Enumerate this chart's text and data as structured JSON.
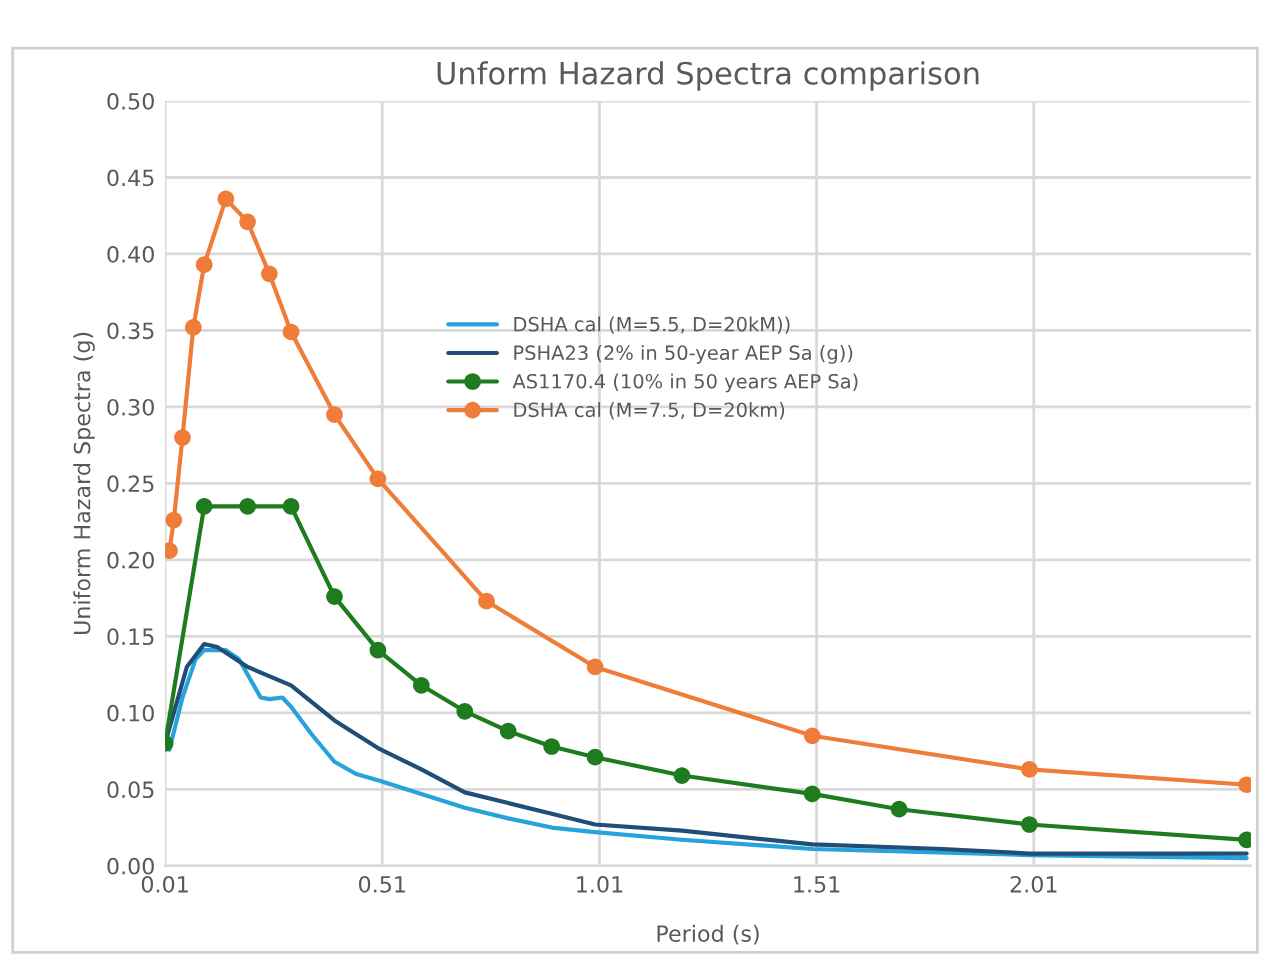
{
  "chart_data": {
    "type": "line",
    "title": "Unform Hazard Spectra comparison",
    "xlabel": "Period (s)",
    "ylabel": "Uniform Hazard Spectra (g)",
    "xlim": [
      0.01,
      2.51
    ],
    "xticks": [
      0.01,
      0.51,
      1.01,
      1.51,
      2.01
    ],
    "ylim": [
      0,
      0.5
    ],
    "yticks": [
      {
        "value": 0,
        "label": "0.00"
      },
      {
        "value": 0.05,
        "label": "0.05"
      },
      {
        "value": 0.1,
        "label": "0.10"
      },
      {
        "value": 0.15,
        "label": "0.15"
      },
      {
        "value": 0.2,
        "label": "0.20"
      },
      {
        "value": 0.25,
        "label": "0.25"
      },
      {
        "value": 0.3,
        "label": "0.30"
      },
      {
        "value": 0.35,
        "label": "0.35"
      },
      {
        "value": 0.4,
        "label": "0.40"
      },
      {
        "value": 0.45,
        "label": "0.45"
      },
      {
        "value": 0.5,
        "label": "0.50"
      }
    ],
    "grid": true,
    "legend": "center",
    "line_style": "solid",
    "series": [
      {
        "name": "DSHA cal (M=5.5, D=20kM))",
        "color": "#27a3dc",
        "marker": "none",
        "x": [
          0.01,
          0.02,
          0.05,
          0.08,
          0.1,
          0.15,
          0.18,
          0.21,
          0.23,
          0.25,
          0.28,
          0.3,
          0.35,
          0.4,
          0.45,
          0.5,
          0.6,
          0.7,
          0.8,
          0.9,
          1.0,
          1.2,
          1.5,
          2.0,
          2.5
        ],
        "values": [
          0.082,
          0.076,
          0.11,
          0.135,
          0.141,
          0.141,
          0.135,
          0.12,
          0.11,
          0.109,
          0.11,
          0.104,
          0.085,
          0.068,
          0.06,
          0.056,
          0.047,
          0.038,
          0.031,
          0.025,
          0.022,
          0.017,
          0.011,
          0.007,
          0.005
        ]
      },
      {
        "name": "PSHA23 (2% in 50-year AEP Sa (g))",
        "color": "#1f4e79",
        "marker": "none",
        "x": [
          0.01,
          0.03,
          0.06,
          0.1,
          0.13,
          0.2,
          0.3,
          0.4,
          0.5,
          0.6,
          0.7,
          0.8,
          0.9,
          1.0,
          1.2,
          1.5,
          1.8,
          2.0,
          2.1,
          2.5
        ],
        "values": [
          0.08,
          0.1,
          0.13,
          0.145,
          0.143,
          0.13,
          0.118,
          0.095,
          0.077,
          0.063,
          0.048,
          0.041,
          0.034,
          0.027,
          0.023,
          0.014,
          0.011,
          0.008,
          0.008,
          0.008
        ]
      },
      {
        "name": "AS1170.4 (10% in 50 years AEP Sa)",
        "color": "#1e7b1e",
        "marker": "circle",
        "x": [
          0.01,
          0.1,
          0.2,
          0.3,
          0.4,
          0.5,
          0.6,
          0.7,
          0.8,
          0.9,
          1.0,
          1.2,
          1.5,
          1.7,
          2.0,
          2.5
        ],
        "values": [
          0.08,
          0.235,
          0.235,
          0.235,
          0.176,
          0.141,
          0.118,
          0.101,
          0.088,
          0.078,
          0.071,
          0.059,
          0.047,
          0.037,
          0.027,
          0.017
        ]
      },
      {
        "name": "DSHA cal (M=7.5, D=20km)",
        "color": "#f07c3a",
        "marker": "circle",
        "x": [
          0.02,
          0.03,
          0.05,
          0.075,
          0.1,
          0.15,
          0.2,
          0.25,
          0.3,
          0.4,
          0.5,
          0.75,
          1.0,
          1.5,
          2.0,
          2.5
        ],
        "values": [
          0.206,
          0.226,
          0.28,
          0.352,
          0.393,
          0.436,
          0.421,
          0.387,
          0.349,
          0.295,
          0.253,
          0.173,
          0.13,
          0.085,
          0.063,
          0.053
        ]
      }
    ]
  }
}
